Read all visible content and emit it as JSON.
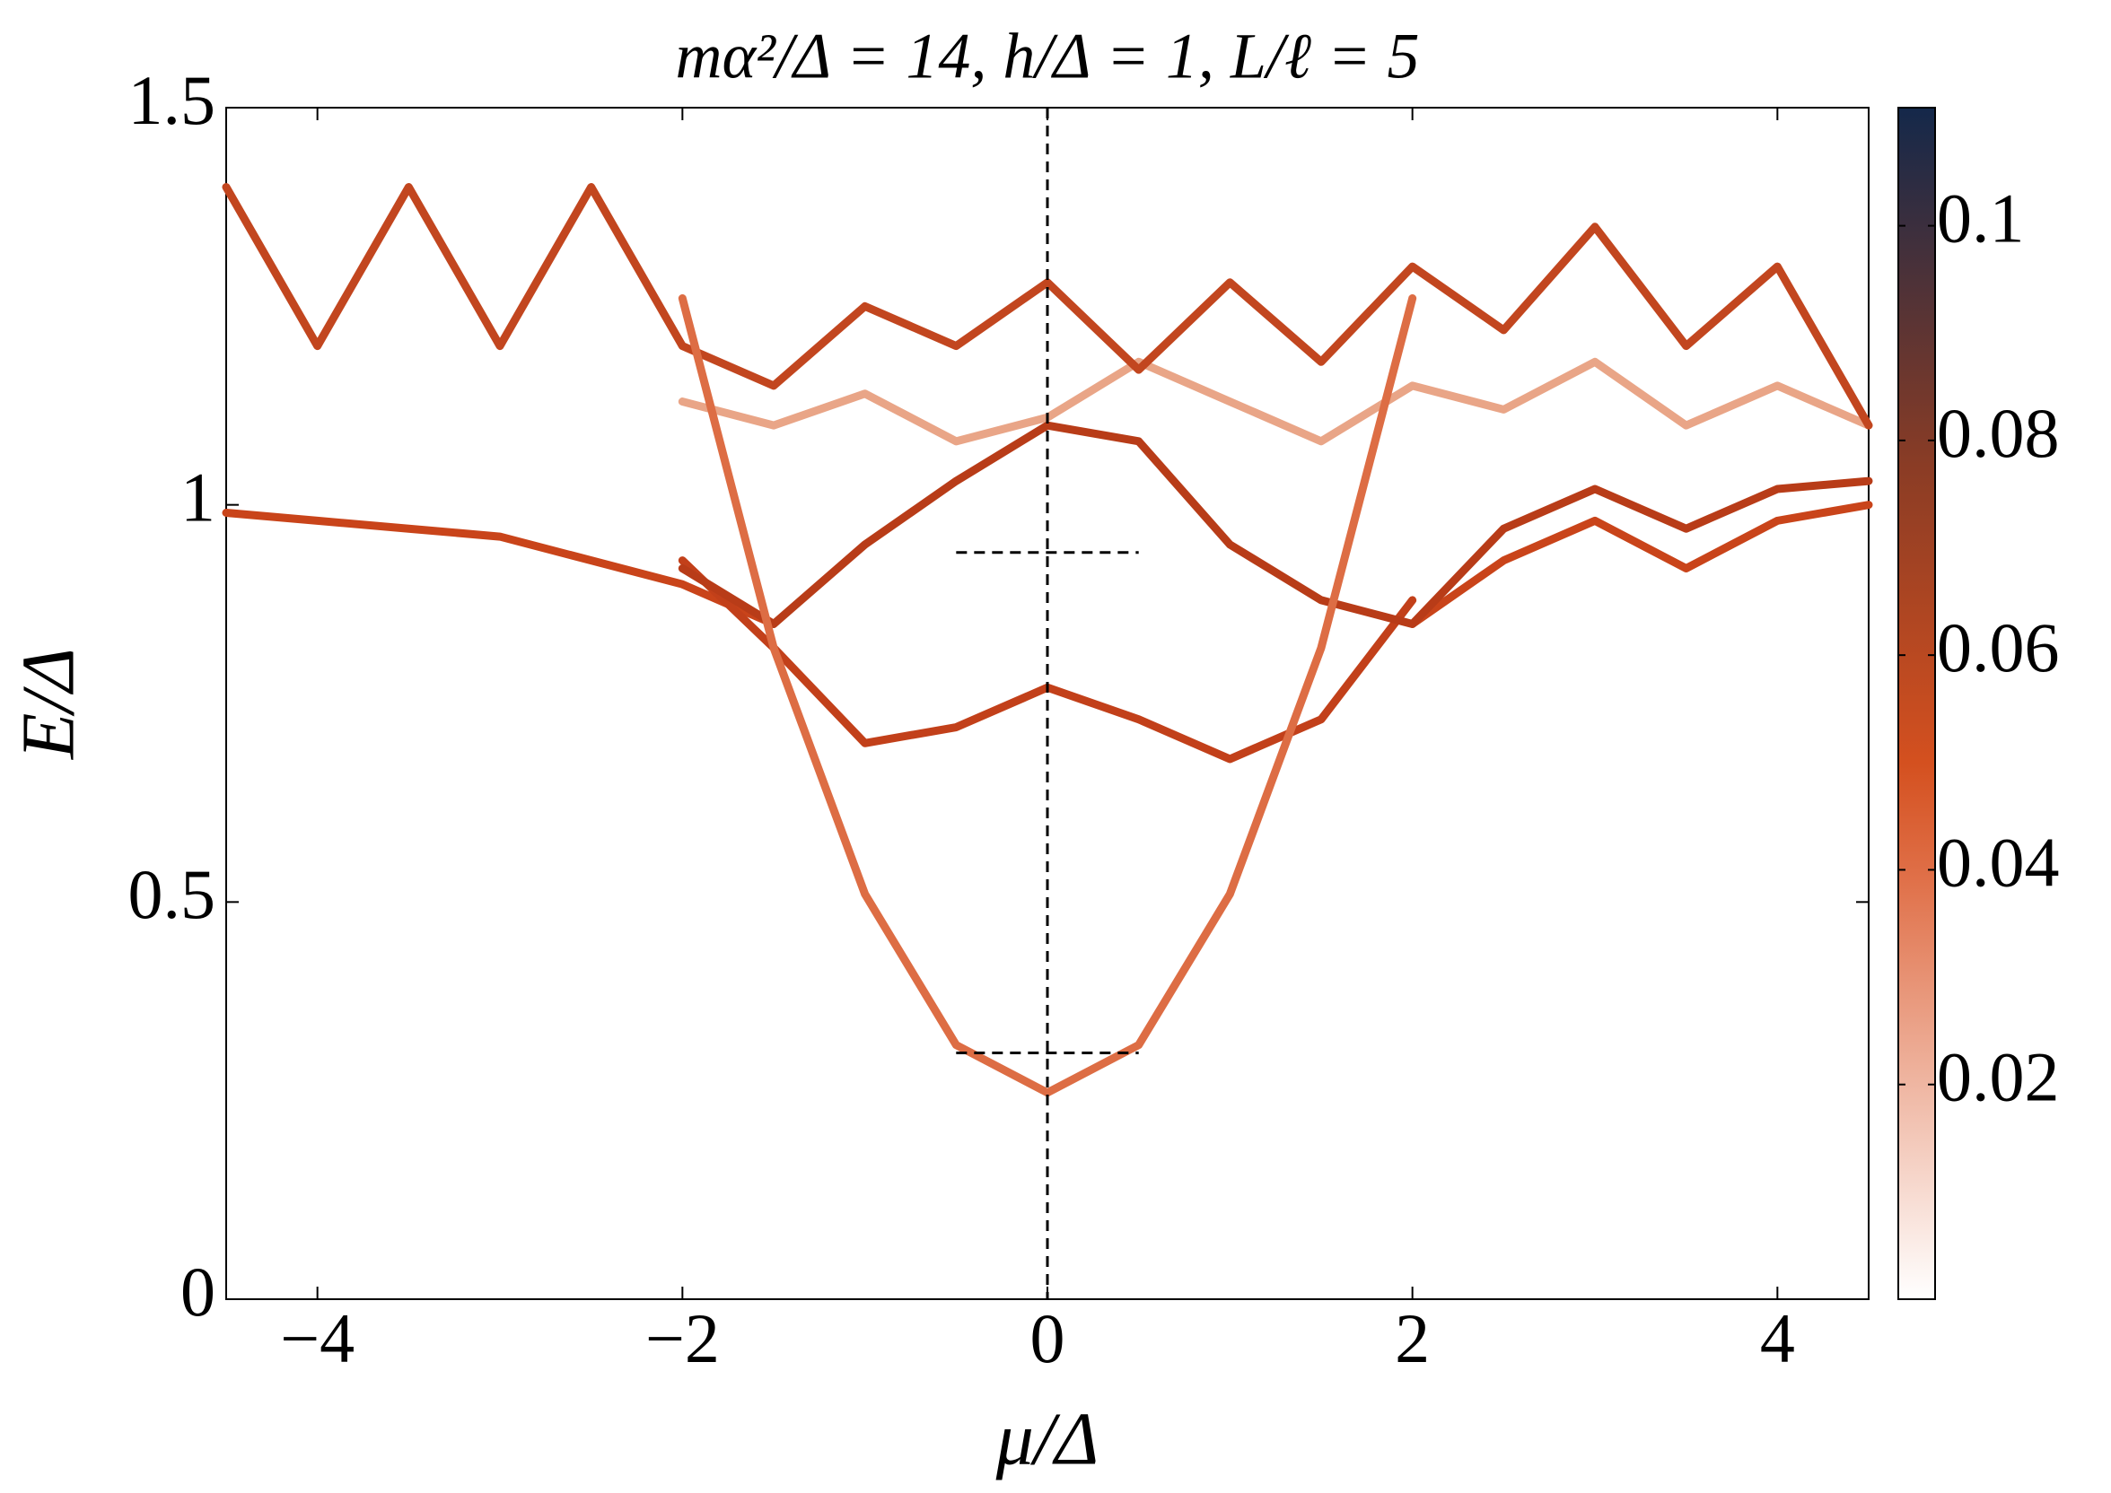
{
  "chart_data": {
    "type": "line",
    "title": "mα²/Δ = 14, h/Δ = 1, L/ℓ = 5",
    "xlabel": "μ/Δ",
    "ylabel": "E/Δ",
    "x": [
      -4.5,
      -4,
      -3.5,
      -3,
      -2.5,
      -2,
      -1.5,
      -1,
      -0.5,
      0,
      0.5,
      1,
      1.5,
      2,
      2.5,
      3,
      3.5,
      4,
      4.5
    ],
    "series": [
      {
        "color": "#c9441a",
        "values": [
          0.99,
          0.98,
          0.97,
          0.96,
          0.93,
          0.9,
          0.85,
          null,
          null,
          null,
          null,
          null,
          null,
          0.85,
          0.93,
          0.98,
          0.92,
          0.98,
          1.0
        ]
      },
      {
        "color": "#c2401a",
        "values": [
          null,
          null,
          null,
          null,
          null,
          0.93,
          0.82,
          0.7,
          0.72,
          0.77,
          0.73,
          0.68,
          0.73,
          0.88,
          null,
          null,
          null,
          null,
          null
        ]
      },
      {
        "color": "#b83c18",
        "values": [
          null,
          null,
          null,
          null,
          null,
          0.92,
          0.85,
          0.95,
          1.03,
          1.1,
          1.08,
          0.95,
          0.88,
          0.85,
          0.97,
          1.02,
          0.97,
          1.02,
          1.03
        ]
      },
      {
        "color": "#e9a587",
        "values": [
          null,
          null,
          null,
          null,
          null,
          1.13,
          1.1,
          1.14,
          1.08,
          1.11,
          1.18,
          1.13,
          1.08,
          1.15,
          1.12,
          1.18,
          1.1,
          1.15,
          1.1
        ]
      },
      {
        "color": "#c2461f",
        "values": [
          1.4,
          1.2,
          1.4,
          1.2,
          1.4,
          1.2,
          1.15,
          1.25,
          1.2,
          1.28,
          1.17,
          1.28,
          1.18,
          1.3,
          1.22,
          1.35,
          1.2,
          1.3,
          1.1
        ]
      },
      {
        "color": "#dd6d44",
        "values": [
          null,
          null,
          null,
          null,
          null,
          1.26,
          0.82,
          0.51,
          0.32,
          0.26,
          0.32,
          0.51,
          0.82,
          1.26,
          null,
          null,
          null,
          null,
          null
        ]
      }
    ],
    "xlim": [
      -4.5,
      4.5
    ],
    "ylim": [
      0,
      1.5
    ],
    "xticks": [
      {
        "value": -4,
        "label": "−4"
      },
      {
        "value": -2,
        "label": "−2"
      },
      0,
      2,
      4
    ],
    "yticks": [
      0,
      0.5,
      1,
      1.5
    ],
    "vlines": [
      0
    ],
    "hlines": [
      {
        "y": 0.94,
        "xmin": -0.5,
        "xmax": 0.5
      },
      {
        "y": 0.31,
        "xmin": -0.5,
        "xmax": 0.5
      }
    ],
    "clim": [
      0,
      0.111
    ],
    "cticks": [
      0.02,
      0.04,
      0.06,
      0.08,
      0.1
    ],
    "grid": false
  }
}
